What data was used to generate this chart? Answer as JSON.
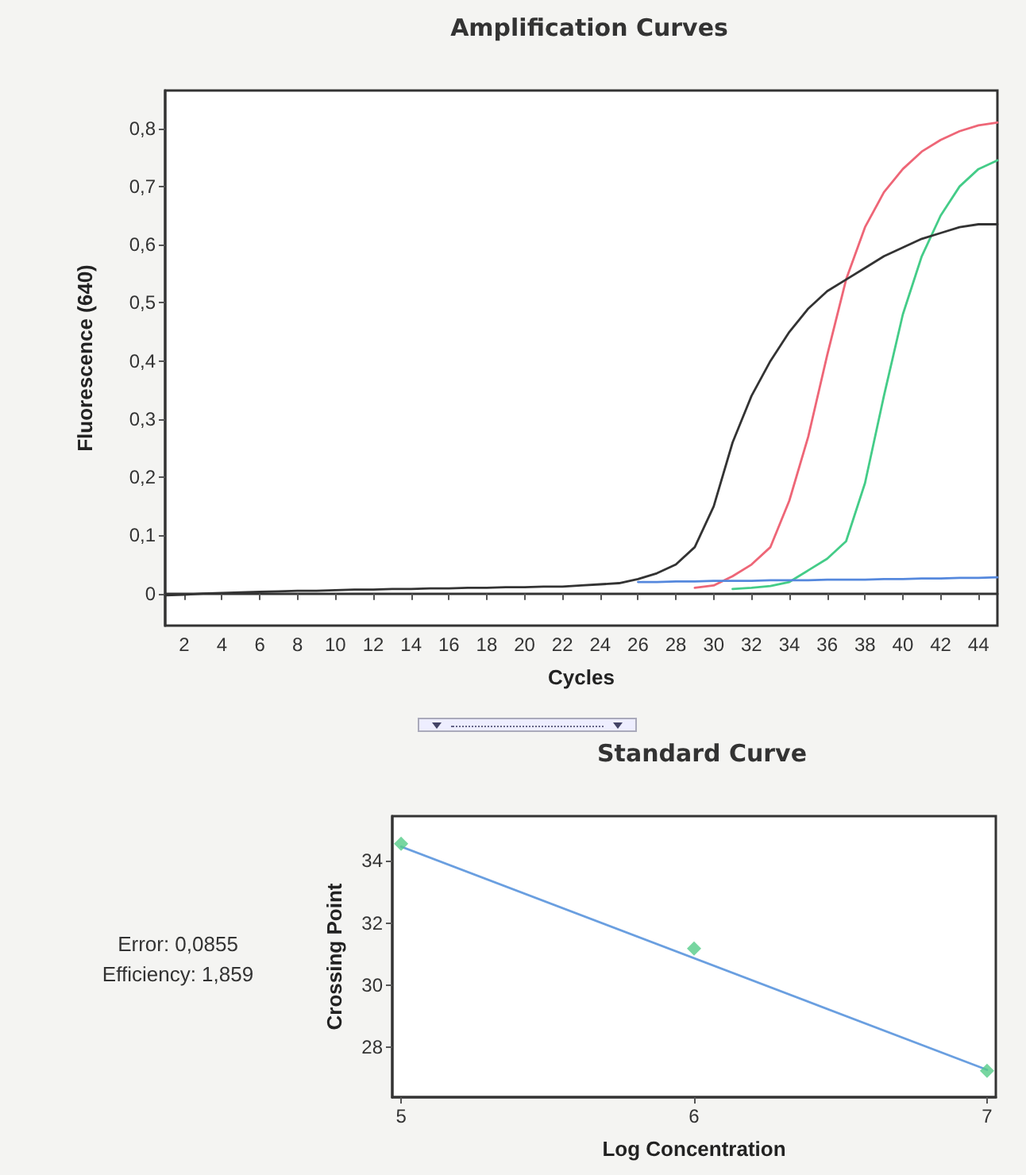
{
  "chart_data": [
    {
      "type": "line",
      "title": "Amplification Curves",
      "xlabel": "Cycles",
      "ylabel": "Fluorescence (640)",
      "x": [
        1,
        2,
        3,
        4,
        5,
        6,
        7,
        8,
        9,
        10,
        11,
        12,
        13,
        14,
        15,
        16,
        17,
        18,
        19,
        20,
        21,
        22,
        23,
        24,
        25,
        26,
        27,
        28,
        29,
        30,
        31,
        32,
        33,
        34,
        35,
        36,
        37,
        38,
        39,
        40,
        41,
        42,
        43,
        44,
        45
      ],
      "series": [
        {
          "color": "#ee6677",
          "values": [
            null,
            null,
            null,
            null,
            null,
            null,
            null,
            null,
            null,
            null,
            null,
            null,
            null,
            null,
            null,
            null,
            null,
            null,
            null,
            null,
            null,
            null,
            null,
            null,
            null,
            null,
            null,
            null,
            0.01,
            0.014,
            0.03,
            0.05,
            0.08,
            0.16,
            0.27,
            0.41,
            0.54,
            0.63,
            0.69,
            0.73,
            0.76,
            0.78,
            0.795,
            0.805,
            0.81
          ]
        },
        {
          "color": "#44cc88",
          "values": [
            null,
            null,
            null,
            null,
            null,
            null,
            null,
            null,
            null,
            null,
            null,
            null,
            null,
            null,
            null,
            null,
            null,
            null,
            null,
            null,
            null,
            null,
            null,
            null,
            null,
            null,
            null,
            null,
            null,
            null,
            0.008,
            0.01,
            0.013,
            0.02,
            0.04,
            0.06,
            0.09,
            0.19,
            0.34,
            0.48,
            0.58,
            0.65,
            0.7,
            0.73,
            0.745
          ]
        },
        {
          "color": "#5588dd",
          "values": [
            null,
            null,
            null,
            null,
            null,
            null,
            null,
            null,
            null,
            null,
            null,
            null,
            null,
            null,
            null,
            null,
            null,
            null,
            null,
            null,
            null,
            null,
            null,
            null,
            null,
            0.02,
            0.02,
            0.021,
            0.021,
            0.022,
            0.022,
            0.022,
            0.023,
            0.023,
            0.023,
            0.024,
            0.024,
            0.024,
            0.025,
            0.025,
            0.026,
            0.026,
            0.027,
            0.027,
            0.028
          ]
        },
        {
          "color": "#333333",
          "values": [
            -0.003,
            -0.002,
            0,
            0.001,
            0.002,
            0.003,
            0.004,
            0.005,
            0.005,
            0.006,
            0.007,
            0.007,
            0.008,
            0.008,
            0.009,
            0.009,
            0.01,
            0.01,
            0.011,
            0.011,
            0.012,
            0.012,
            0.014,
            0.016,
            0.018,
            0.025,
            0.035,
            0.05,
            0.08,
            0.15,
            0.26,
            0.34,
            0.4,
            0.45,
            0.49,
            0.52,
            0.54,
            0.56,
            0.58,
            0.595,
            0.61,
            0.62,
            0.63,
            0.635,
            0.635
          ]
        }
      ],
      "xlim": [
        1,
        45
      ],
      "xticks": [
        2,
        4,
        6,
        8,
        10,
        12,
        14,
        16,
        18,
        20,
        22,
        24,
        26,
        28,
        30,
        32,
        34,
        36,
        38,
        40,
        42,
        44
      ],
      "ylim": [
        -0.055,
        0.865
      ],
      "yticks": [
        0,
        {
          "value": 0.1,
          "label": "0,1"
        },
        {
          "value": 0.2,
          "label": "0,2"
        },
        {
          "value": 0.3,
          "label": "0,3"
        },
        {
          "value": 0.4,
          "label": "0,4"
        },
        {
          "value": 0.5,
          "label": "0,5"
        },
        {
          "value": 0.6,
          "label": "0,6"
        },
        {
          "value": 0.7,
          "label": "0,7"
        },
        {
          "value": 0.8,
          "label": "0,8"
        }
      ],
      "marker": "none",
      "line_style": "solid"
    },
    {
      "type": "scatter",
      "title": "Standard Curve",
      "xlabel": "Log Concentration",
      "ylabel": "Crossing Point",
      "x": [
        5,
        6,
        7
      ],
      "series": [
        {
          "color": "#55cc88",
          "values": [
            34.55,
            31.18,
            27.25
          ]
        },
        {
          "type": "line",
          "color": "#6a9fe0",
          "x": [
            5,
            7
          ],
          "values": [
            34.46,
            27.28
          ],
          "marker": "none"
        }
      ],
      "xlim": [
        4.97,
        7.03
      ],
      "xticks": [
        5,
        6,
        7
      ],
      "ylim": [
        26.4,
        35.44
      ],
      "yticks": [
        28,
        30,
        32,
        34
      ],
      "marker": "diamond",
      "annotations": [
        "Error: 0,0855",
        "Efficiency: 1,859"
      ]
    }
  ]
}
